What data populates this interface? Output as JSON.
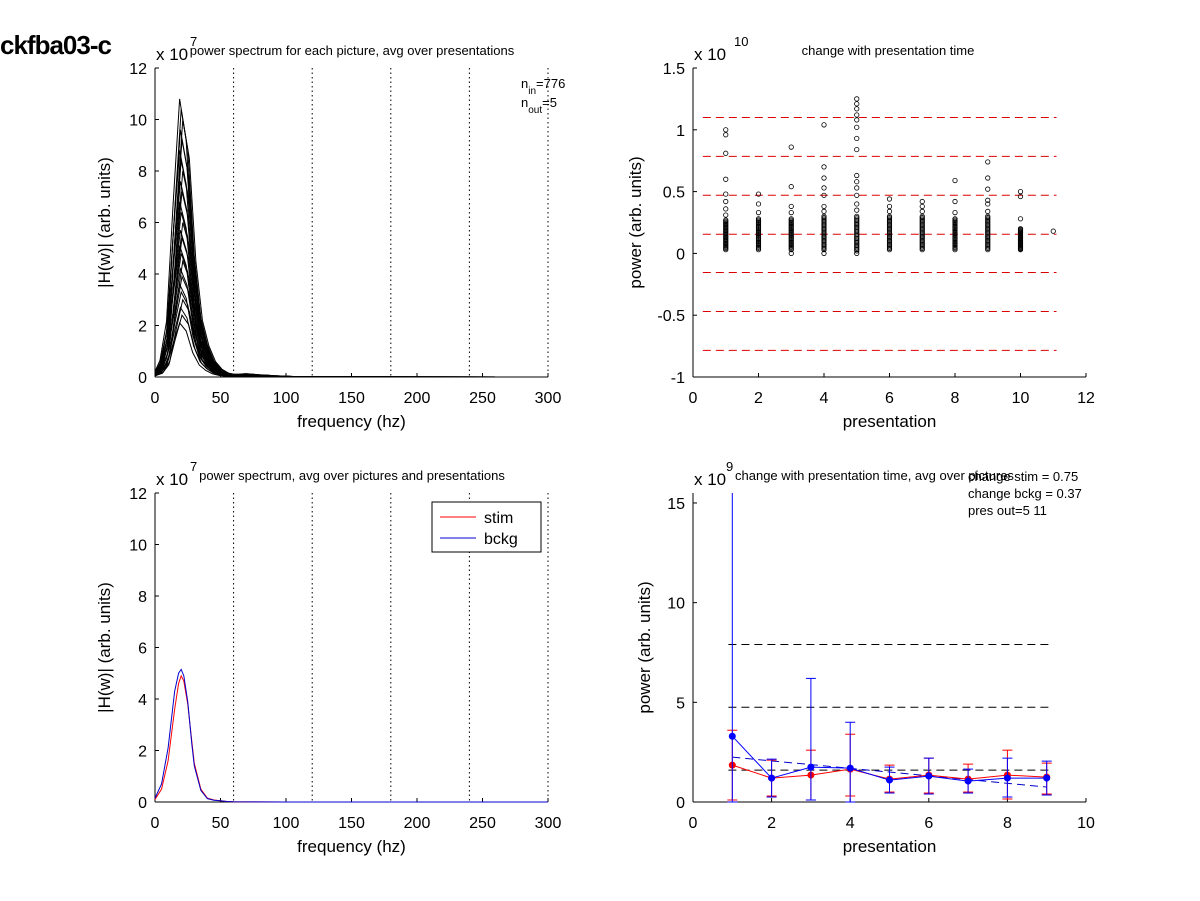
{
  "suptitle": "ckfba03-c",
  "chart_data": [
    {
      "type": "line",
      "title": "power spectrum for each picture, avg over presentations",
      "xlabel": "frequency (hz)",
      "ylabel": "|H(w)| (arb. units)",
      "exponent_label": "x 10",
      "exponent": "7",
      "xlim": [
        0,
        300
      ],
      "ylim": [
        0,
        12
      ],
      "xticks": [
        0,
        50,
        100,
        150,
        200,
        250,
        300
      ],
      "yticks": [
        0,
        2,
        4,
        6,
        8,
        10,
        12
      ],
      "vertical_dotted_lines_x": [
        60,
        120,
        180,
        240,
        300
      ],
      "annotation_lines": [
        {
          "base": "n",
          "sub": "in",
          "text": "=776"
        },
        {
          "base": "n",
          "sub": "out",
          "text": "=5"
        }
      ],
      "series_template": {
        "x": [
          0,
          5,
          10,
          15,
          20,
          25,
          30,
          35,
          40,
          45,
          50,
          55,
          60,
          65,
          70,
          75,
          80,
          85,
          90,
          100,
          110,
          150,
          300
        ],
        "shape": [
          0.02,
          0.06,
          0.2,
          0.62,
          1.0,
          0.85,
          0.45,
          0.22,
          0.12,
          0.06,
          0.03,
          0.015,
          0.01,
          0.01,
          0.012,
          0.01,
          0.008,
          0.007,
          0.005,
          0.003,
          0.001,
          0.0005,
          0.0
        ]
      },
      "peak_values": [
        10.8,
        10.4,
        10.0,
        9.6,
        9.2,
        8.8,
        8.4,
        8.0,
        7.6,
        7.2,
        6.8,
        6.4,
        6.0,
        5.7,
        5.4,
        5.1,
        4.8,
        4.5,
        4.2,
        3.9,
        3.6,
        3.3,
        3.0,
        2.7,
        2.4,
        2.1
      ]
    },
    {
      "type": "scatter",
      "title": "change with presentation time",
      "xlabel": "presentation",
      "ylabel": "power (arb. units)",
      "exponent_label": "x 10",
      "exponent": "10",
      "xlim": [
        0,
        12
      ],
      "ylim": [
        -1,
        1.5
      ],
      "xticks": [
        0,
        2,
        4,
        6,
        8,
        10,
        12
      ],
      "yticks": [
        -1,
        -0.5,
        0,
        0.5,
        1,
        1.5
      ],
      "ytick_labels": [
        "-1",
        "-0.5",
        "0",
        "0.5",
        "1",
        "1.5"
      ],
      "red_dashed_lines_y": [
        1.1,
        0.785,
        0.47,
        0.155,
        -0.155,
        -0.47,
        -0.785
      ],
      "columns": [
        {
          "x": 1,
          "dense_min": 0.03,
          "dense_max": 0.27,
          "extra": [
            0.31,
            0.36,
            0.42,
            0.48,
            0.6,
            0.81,
            0.96,
            1.0
          ]
        },
        {
          "x": 2,
          "dense_min": 0.03,
          "dense_max": 0.28,
          "extra": [
            0.33,
            0.4,
            0.48
          ]
        },
        {
          "x": 3,
          "dense_min": 0.03,
          "dense_max": 0.28,
          "extra": [
            0.0,
            0.33,
            0.38,
            0.54,
            0.86
          ]
        },
        {
          "x": 4,
          "dense_min": 0.03,
          "dense_max": 0.3,
          "extra": [
            0.0,
            0.34,
            0.38,
            0.47,
            0.53,
            0.61,
            0.7,
            1.04
          ]
        },
        {
          "x": 5,
          "dense_min": 0.02,
          "dense_max": 0.3,
          "extra": [
            0.0,
            0.35,
            0.4,
            0.47,
            0.53,
            0.58,
            0.63,
            0.84,
            0.93,
            1.02,
            1.08,
            1.12,
            1.17,
            1.21,
            1.25
          ]
        },
        {
          "x": 6,
          "dense_min": 0.03,
          "dense_max": 0.3,
          "extra": [
            0.34,
            0.38,
            0.44
          ]
        },
        {
          "x": 7,
          "dense_min": 0.03,
          "dense_max": 0.3,
          "extra": [
            0.34,
            0.38,
            0.42
          ]
        },
        {
          "x": 8,
          "dense_min": 0.03,
          "dense_max": 0.28,
          "extra": [
            0.33,
            0.42,
            0.59
          ]
        },
        {
          "x": 9,
          "dense_min": 0.03,
          "dense_max": 0.3,
          "extra": [
            0.34,
            0.4,
            0.43,
            0.52,
            0.61,
            0.74
          ]
        },
        {
          "x": 10,
          "dense_min": 0.03,
          "dense_max": 0.2,
          "extra": [
            0.28,
            0.46,
            0.5
          ]
        },
        {
          "x": 11,
          "dense_min": 0.18,
          "dense_max": 0.18,
          "extra": []
        }
      ]
    },
    {
      "type": "line",
      "title": "power spectrum, avg over pictures and presentations",
      "xlabel": "frequency (hz)",
      "ylabel": "|H(w)| (arb. units)",
      "exponent_label": "x 10",
      "exponent": "7",
      "xlim": [
        0,
        300
      ],
      "ylim": [
        0,
        12
      ],
      "xticks": [
        0,
        50,
        100,
        150,
        200,
        250,
        300
      ],
      "yticks": [
        0,
        2,
        4,
        6,
        8,
        10,
        12
      ],
      "vertical_dotted_lines_x": [
        60,
        120,
        180,
        240,
        300
      ],
      "x": [
        0,
        5,
        10,
        15,
        18,
        20,
        22,
        25,
        28,
        30,
        35,
        40,
        45,
        50,
        55,
        60,
        100,
        150,
        200,
        250,
        300
      ],
      "series": [
        {
          "name": "stim",
          "color": "#ff0000",
          "values": [
            0.1,
            0.5,
            1.6,
            3.6,
            4.6,
            4.9,
            4.7,
            3.8,
            2.4,
            1.5,
            0.5,
            0.15,
            0.08,
            0.05,
            0.02,
            0.01,
            0.0,
            0.0,
            0.0,
            0.0,
            0.0
          ]
        },
        {
          "name": "bckg",
          "color": "#0000cc",
          "values": [
            0.15,
            0.7,
            2.1,
            4.3,
            5.0,
            5.15,
            4.9,
            3.9,
            2.3,
            1.4,
            0.45,
            0.13,
            0.07,
            0.05,
            0.02,
            0.01,
            0.0,
            0.0,
            0.0,
            0.0,
            0.0
          ]
        }
      ]
    },
    {
      "type": "line",
      "title": "change with presentation time, avg over pictures",
      "xlabel": "presentation",
      "ylabel": "power (arb. units)",
      "exponent_label": "x 10",
      "exponent": "9",
      "xlim": [
        0,
        10
      ],
      "ylim": [
        0,
        15.5
      ],
      "xticks": [
        0,
        2,
        4,
        6,
        8,
        10
      ],
      "yticks": [
        0,
        5,
        10,
        15
      ],
      "annotations": [
        "change stim = 0.75",
        "change bckg = 0.37",
        "pres out=5 11"
      ],
      "black_dashed_lines_y": [
        7.9,
        4.75,
        1.6
      ],
      "blue_dashed_line": {
        "x": [
          1,
          9
        ],
        "y": [
          2.25,
          0.75
        ]
      },
      "x": [
        1,
        2,
        3,
        4,
        5,
        6,
        7,
        8,
        9
      ],
      "series": [
        {
          "name": "stim",
          "color": "#ff0000",
          "values": [
            1.85,
            1.2,
            1.35,
            1.65,
            1.15,
            1.35,
            1.15,
            1.35,
            1.25
          ],
          "err_low": [
            0.1,
            0.3,
            0.1,
            0.3,
            0.5,
            0.45,
            0.5,
            0.15,
            0.4
          ],
          "err_high": [
            3.6,
            2.1,
            2.6,
            3.4,
            1.85,
            2.2,
            1.9,
            2.6,
            1.95
          ]
        },
        {
          "name": "bckg",
          "color": "#0000ff",
          "values": [
            3.3,
            1.2,
            1.75,
            1.7,
            1.1,
            1.3,
            1.05,
            1.2,
            1.2
          ],
          "err_low": [
            0.0,
            0.25,
            0.1,
            0.0,
            0.45,
            0.4,
            0.45,
            0.25,
            0.35
          ],
          "err_high": [
            15.5,
            2.15,
            6.2,
            4.0,
            1.75,
            2.2,
            1.65,
            2.2,
            2.05
          ]
        }
      ]
    }
  ]
}
